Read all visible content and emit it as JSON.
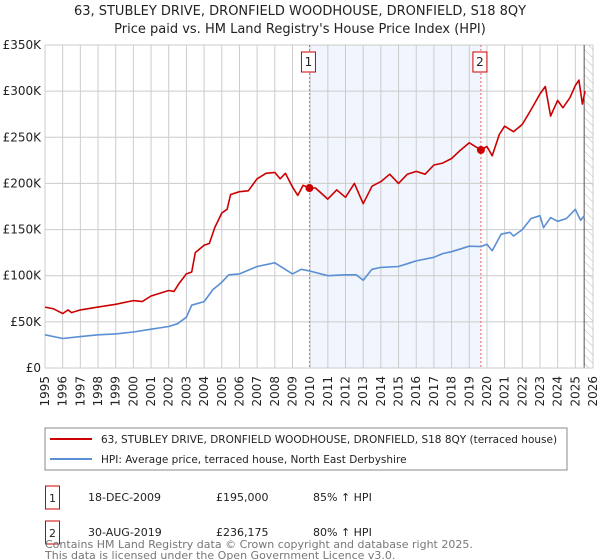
{
  "chart_data": {
    "type": "line",
    "title": "63, STUBLEY DRIVE, DRONFIELD WOODHOUSE, DRONFIELD, S18 8QY",
    "subtitle": "Price paid vs. HM Land Registry's House Price Index (HPI)",
    "xlim": [
      1995,
      2026
    ],
    "ylim": [
      0,
      350000
    ],
    "x_ticks": [
      "1995",
      "1996",
      "1997",
      "1998",
      "1999",
      "2000",
      "2001",
      "2002",
      "2003",
      "2004",
      "2005",
      "2006",
      "2007",
      "2008",
      "2009",
      "2010",
      "2011",
      "2012",
      "2013",
      "2014",
      "2015",
      "2016",
      "2017",
      "2018",
      "2019",
      "2020",
      "2021",
      "2022",
      "2023",
      "2024",
      "2025",
      "2026"
    ],
    "y_ticks": [
      {
        "value": 0,
        "label": "£0"
      },
      {
        "value": 50000,
        "label": "£50K"
      },
      {
        "value": 100000,
        "label": "£100K"
      },
      {
        "value": 150000,
        "label": "£150K"
      },
      {
        "value": 200000,
        "label": "£200K"
      },
      {
        "value": 250000,
        "label": "£250K"
      },
      {
        "value": 300000,
        "label": "£300K"
      },
      {
        "value": 350000,
        "label": "£350K"
      }
    ],
    "grid": true,
    "shaded_range": [
      2009.96,
      2019.66
    ],
    "forecast_hatch_from": 2025.5,
    "series": [
      {
        "name": "63, STUBLEY DRIVE, DRONFIELD WOODHOUSE, DRONFIELD, S18 8QY (terraced house)",
        "color": "#cc0000",
        "x": [
          1995,
          1995.5,
          1996,
          1996.3,
          1996.5,
          1997,
          1998,
          1999,
          2000,
          2000.5,
          2001,
          2002,
          2002.3,
          2002.6,
          2003,
          2003.3,
          2003.5,
          2004,
          2004.3,
          2004.6,
          2005,
          2005.3,
          2005.5,
          2006,
          2006.5,
          2007,
          2007.5,
          2008,
          2008.3,
          2008.6,
          2009,
          2009.3,
          2009.6,
          2009.96,
          2010.3,
          2011,
          2011.5,
          2012,
          2012.5,
          2013,
          2013.5,
          2014,
          2014.5,
          2015,
          2015.5,
          2016,
          2016.5,
          2017,
          2017.5,
          2018,
          2018.5,
          2019,
          2019.66,
          2020,
          2020.3,
          2020.7,
          2021,
          2021.5,
          2022,
          2022.5,
          2023,
          2023.3,
          2023.6,
          2024,
          2024.3,
          2024.7,
          2025,
          2025.2,
          2025.4,
          2025.55
        ],
        "y": [
          66000,
          64000,
          59000,
          63000,
          60000,
          63000,
          66000,
          69000,
          73000,
          72000,
          78000,
          84000,
          83000,
          92000,
          102000,
          104000,
          125000,
          133000,
          135000,
          152000,
          168000,
          172000,
          188000,
          191000,
          192000,
          205000,
          211000,
          212000,
          205000,
          211000,
          196000,
          187000,
          198000,
          195000,
          195000,
          183000,
          193000,
          185000,
          200000,
          178000,
          197000,
          202000,
          210000,
          200000,
          210000,
          213000,
          210000,
          220000,
          222000,
          227000,
          236000,
          244000,
          236175,
          240000,
          230000,
          253000,
          262000,
          256000,
          264000,
          280000,
          297000,
          305000,
          273000,
          290000,
          282000,
          293000,
          306000,
          312000,
          286000,
          300000
        ]
      },
      {
        "name": "HPI: Average price, terraced house, North East Derbyshire",
        "color": "#5b8fd4",
        "x": [
          1995,
          1996,
          1997,
          1998,
          1999,
          2000,
          2001,
          2002,
          2002.5,
          2003,
          2003.3,
          2004,
          2004.5,
          2005,
          2005.4,
          2006,
          2007,
          2008,
          2008.5,
          2009,
          2009.5,
          2010,
          2011,
          2012,
          2012.6,
          2013,
          2013.5,
          2014,
          2015,
          2015.5,
          2016,
          2017,
          2017.5,
          2018,
          2019,
          2019.66,
          2020,
          2020.3,
          2020.8,
          2021.3,
          2021.5,
          2022,
          2022.5,
          2023,
          2023.2,
          2023.6,
          2024,
          2024.5,
          2025,
          2025.3,
          2025.5
        ],
        "y": [
          36000,
          32000,
          34000,
          36000,
          37000,
          39000,
          42000,
          45000,
          48000,
          55000,
          68000,
          72000,
          85000,
          93000,
          101000,
          102000,
          110000,
          114000,
          108000,
          102000,
          107000,
          105000,
          100000,
          101000,
          101000,
          95000,
          107000,
          109000,
          110000,
          113000,
          116000,
          120000,
          124000,
          126000,
          132000,
          131500,
          134000,
          127000,
          145000,
          147000,
          143000,
          150000,
          162000,
          165000,
          152000,
          163000,
          159000,
          162000,
          172000,
          160000,
          165000
        ]
      }
    ],
    "annotations": [
      {
        "label": "1",
        "x": 2009.96,
        "y": 195000
      },
      {
        "label": "2",
        "x": 2019.66,
        "y": 236175
      }
    ]
  },
  "legend": {
    "red_label": "63, STUBLEY DRIVE, DRONFIELD WOODHOUSE, DRONFIELD, S18 8QY (terraced house)",
    "blue_label": "HPI: Average price, terraced house, North East Derbyshire"
  },
  "transactions": [
    {
      "num": "1",
      "date": "18-DEC-2009",
      "price": "£195,000",
      "hpi": "85% ↑ HPI"
    },
    {
      "num": "2",
      "date": "30-AUG-2019",
      "price": "£236,175",
      "hpi": "80% ↑ HPI"
    }
  ],
  "footer": {
    "line1": "Contains HM Land Registry data © Crown copyright and database right 2025.",
    "line2": "This data is licensed under the Open Government Licence v3.0."
  }
}
